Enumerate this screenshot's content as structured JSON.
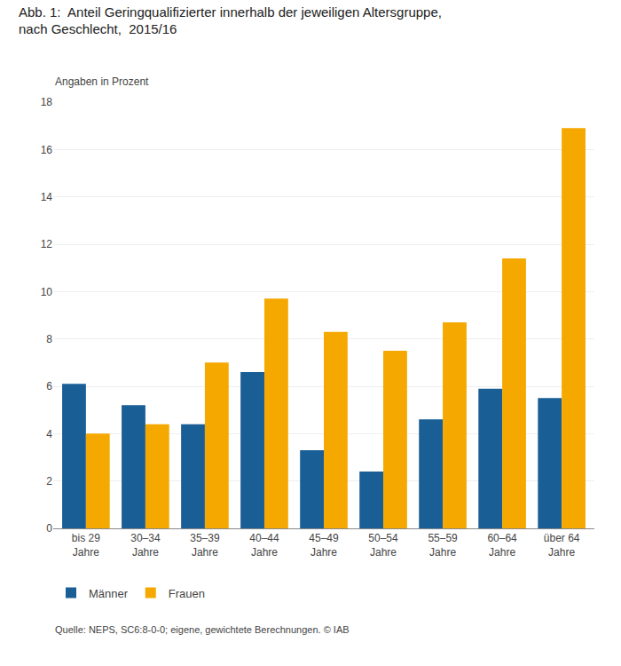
{
  "chart_data": {
    "type": "bar",
    "title": "Abb. 1:  Anteil Geringqualifizierter innerhalb der jeweiligen Altersgruppe,\nnach Geschlecht,  2015/16",
    "subtitle": "Angaben in Prozent",
    "source": "Quelle: NEPS, SC6:8-0-0; eigene, gewichtete Berechnungen. © IAB",
    "categories": [
      "bis 29\nJahre",
      "30–34\nJahre",
      "35–39\nJahre",
      "40–44\nJahre",
      "45–49\nJahre",
      "50–54\nJahre",
      "55–59\nJahre",
      "60–64\nJahre",
      "über 64\nJahre"
    ],
    "series": [
      {
        "name": "Männer",
        "color": "#1a5e96",
        "values": [
          6.1,
          5.2,
          4.4,
          6.6,
          3.3,
          2.4,
          4.6,
          5.9,
          5.5
        ]
      },
      {
        "name": "Frauen",
        "color": "#f5a800",
        "values": [
          4.0,
          4.4,
          7.0,
          9.7,
          8.3,
          7.5,
          8.7,
          11.4,
          16.9
        ]
      }
    ],
    "ylim": [
      0,
      18
    ],
    "yticks": [
      0,
      2,
      4,
      6,
      8,
      10,
      12,
      14,
      16,
      18
    ],
    "grid": true,
    "legend": "bottom"
  }
}
